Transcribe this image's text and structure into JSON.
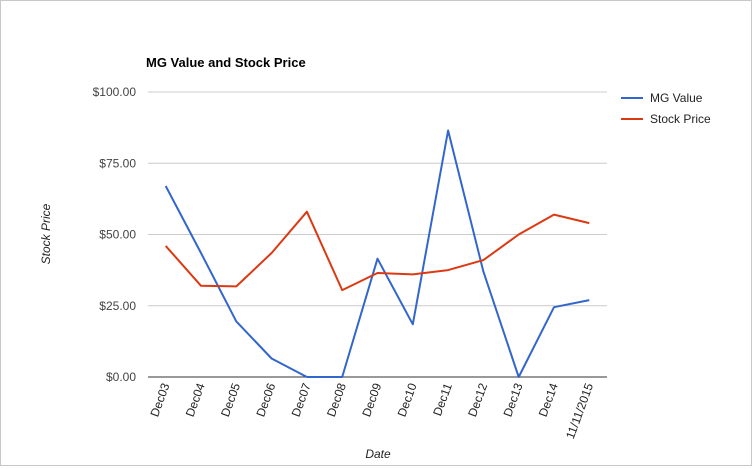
{
  "chart_data": {
    "type": "line",
    "title": "MG Value and Stock Price",
    "xlabel": "Date",
    "ylabel": "Stock Price",
    "categories": [
      "Dec03",
      "Dec04",
      "Dec05",
      "Dec06",
      "Dec07",
      "Dec08",
      "Dec09",
      "Dec10",
      "Dec11",
      "Dec12",
      "Dec13",
      "Dec14",
      "11/11/2015"
    ],
    "ylim": [
      0,
      100
    ],
    "yticks": [
      {
        "value": 0,
        "label": "$0.00"
      },
      {
        "value": 25,
        "label": "$25.00"
      },
      {
        "value": 50,
        "label": "$50.00"
      },
      {
        "value": 75,
        "label": "$75.00"
      },
      {
        "value": 100,
        "label": "$100.00"
      }
    ],
    "grid": true,
    "legend": "right",
    "series": [
      {
        "name": "MG Value",
        "color": "#3366cc",
        "values": [
          67.0,
          43.5,
          19.5,
          6.5,
          0.0,
          0.0,
          41.5,
          18.5,
          86.5,
          37.0,
          0.0,
          24.5,
          27.0
        ]
      },
      {
        "name": "Stock Price",
        "color": "#dc3912",
        "values": [
          46.0,
          32.0,
          31.8,
          43.5,
          58.0,
          30.5,
          36.5,
          36.0,
          37.5,
          41.0,
          50.0,
          57.0,
          54.0
        ]
      }
    ]
  }
}
